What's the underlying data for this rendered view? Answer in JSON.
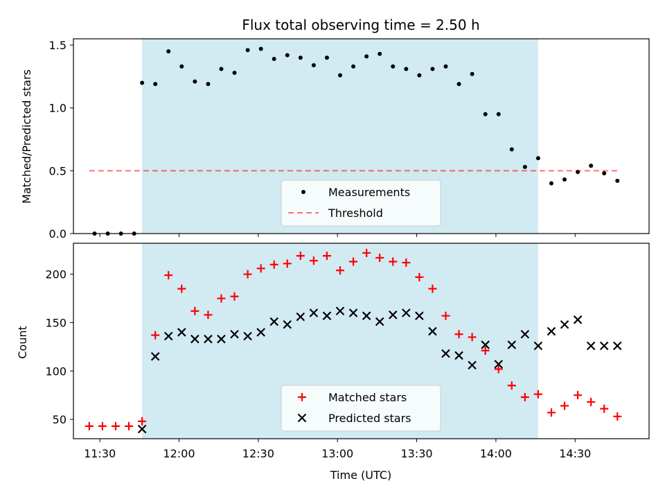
{
  "title": "Flux total observing time = 2.50 h",
  "colors": {
    "shade": "#add8e6",
    "threshold": "#ff0000",
    "matched": "#ff0000",
    "predicted": "#000000",
    "measurement": "#000000"
  },
  "chart_data": [
    {
      "type": "scatter",
      "ylabel": "Matched/Predicted stars",
      "xlabel": "",
      "xlim": [
        "11:20",
        "14:58"
      ],
      "ylim": [
        0,
        1.55
      ],
      "yticks": [
        0.0,
        0.5,
        1.0,
        1.5
      ],
      "ytick_labels": [
        "0.0",
        "0.5",
        "1.0",
        "1.5"
      ],
      "shaded_span": [
        "11:46",
        "14:16"
      ],
      "legend_position": "lower-center",
      "series": [
        {
          "name": "Measurements",
          "marker": "dot",
          "x": [
            "11:28",
            "11:33",
            "11:38",
            "11:43",
            "11:46",
            "11:51",
            "11:56",
            "12:01",
            "12:06",
            "12:11",
            "12:16",
            "12:21",
            "12:26",
            "12:31",
            "12:36",
            "12:41",
            "12:46",
            "12:51",
            "12:56",
            "13:01",
            "13:06",
            "13:11",
            "13:16",
            "13:21",
            "13:26",
            "13:31",
            "13:36",
            "13:41",
            "13:46",
            "13:51",
            "13:56",
            "14:01",
            "14:06",
            "14:11",
            "14:16",
            "14:21",
            "14:26",
            "14:31",
            "14:36",
            "14:41",
            "14:46"
          ],
          "y": [
            0.0,
            0.0,
            0.0,
            0.0,
            1.2,
            1.19,
            1.45,
            1.33,
            1.21,
            1.19,
            1.31,
            1.28,
            1.46,
            1.47,
            1.39,
            1.42,
            1.4,
            1.34,
            1.4,
            1.26,
            1.33,
            1.41,
            1.43,
            1.33,
            1.31,
            1.26,
            1.31,
            1.33,
            1.19,
            1.27,
            0.95,
            0.95,
            0.67,
            0.53,
            0.6,
            0.4,
            0.43,
            0.49,
            0.54,
            0.48,
            0.42
          ]
        },
        {
          "name": "Threshold",
          "marker": "dashed-line",
          "x": [
            "11:26",
            "14:46"
          ],
          "y": [
            0.5,
            0.5
          ]
        }
      ]
    },
    {
      "type": "scatter",
      "ylabel": "Count",
      "xlabel": "Time (UTC)",
      "xlim": [
        "11:20",
        "14:58"
      ],
      "ylim": [
        30,
        232
      ],
      "yticks": [
        50,
        100,
        150,
        200
      ],
      "ytick_labels": [
        "50",
        "100",
        "150",
        "200"
      ],
      "xticks": [
        "11:30",
        "12:00",
        "12:30",
        "13:00",
        "13:30",
        "14:00",
        "14:30"
      ],
      "shaded_span": [
        "11:46",
        "14:16"
      ],
      "legend_position": "lower-center",
      "series": [
        {
          "name": "Matched stars",
          "marker": "plus",
          "x": [
            "11:26",
            "11:31",
            "11:36",
            "11:41",
            "11:46",
            "11:51",
            "11:56",
            "12:01",
            "12:06",
            "12:11",
            "12:16",
            "12:21",
            "12:26",
            "12:31",
            "12:36",
            "12:41",
            "12:46",
            "12:51",
            "12:56",
            "13:01",
            "13:06",
            "13:11",
            "13:16",
            "13:21",
            "13:26",
            "13:31",
            "13:36",
            "13:41",
            "13:46",
            "13:51",
            "13:56",
            "14:01",
            "14:06",
            "14:11",
            "14:16",
            "14:21",
            "14:26",
            "14:31",
            "14:36",
            "14:41",
            "14:46"
          ],
          "y": [
            43,
            43,
            43,
            43,
            48,
            137,
            199,
            185,
            162,
            158,
            175,
            177,
            200,
            206,
            210,
            211,
            219,
            214,
            219,
            204,
            213,
            222,
            217,
            213,
            212,
            197,
            185,
            157,
            138,
            135,
            121,
            102,
            85,
            73,
            76,
            57,
            64,
            75,
            68,
            61,
            53
          ]
        },
        {
          "name": "Predicted stars",
          "marker": "x",
          "x": [
            "11:46",
            "11:51",
            "11:56",
            "12:01",
            "12:06",
            "12:11",
            "12:16",
            "12:21",
            "12:26",
            "12:31",
            "12:36",
            "12:41",
            "12:46",
            "12:51",
            "12:56",
            "13:01",
            "13:06",
            "13:11",
            "13:16",
            "13:21",
            "13:26",
            "13:31",
            "13:36",
            "13:41",
            "13:46",
            "13:51",
            "13:56",
            "14:01",
            "14:06",
            "14:11",
            "14:16",
            "14:21",
            "14:26",
            "14:31",
            "14:36",
            "14:41",
            "14:46"
          ],
          "y": [
            40,
            115,
            136,
            140,
            133,
            133,
            133,
            138,
            136,
            140,
            151,
            148,
            156,
            160,
            157,
            162,
            160,
            157,
            151,
            158,
            160,
            157,
            141,
            118,
            116,
            106,
            127,
            107,
            127,
            138,
            126,
            141,
            148,
            153,
            126,
            126,
            126
          ]
        }
      ]
    }
  ]
}
